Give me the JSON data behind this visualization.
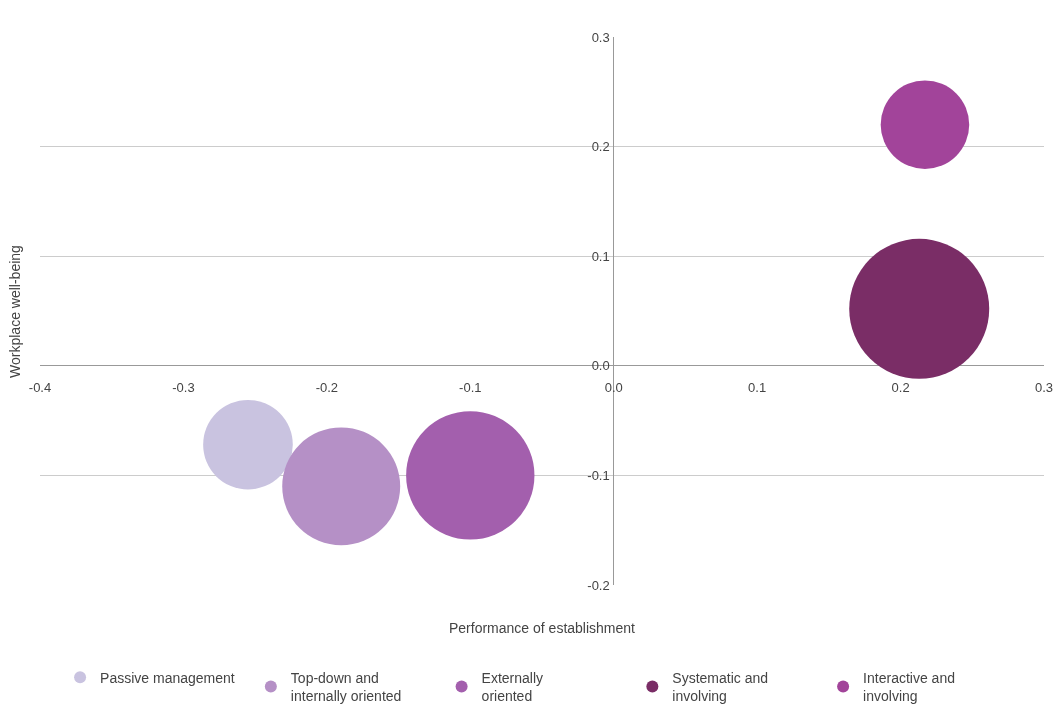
{
  "chart_data": {
    "type": "bubble",
    "xlabel": "Performance of establishment",
    "ylabel": "Workplace well-being",
    "xlim": [
      -0.4,
      0.3
    ],
    "ylim": [
      -0.2,
      0.3
    ],
    "xticks": [
      -0.4,
      -0.3,
      -0.2,
      -0.1,
      {
        "value": 0,
        "label": "0.0"
      },
      0.1,
      0.2,
      0.3
    ],
    "yticks": [
      -0.2,
      -0.1,
      {
        "value": 0,
        "label": "0.0"
      },
      0.1,
      0.2,
      0.3
    ],
    "grid": "y",
    "legend": "bottom",
    "series": [
      {
        "name": "Passive management",
        "color": "#c9c3e0",
        "x": [
          -0.255
        ],
        "values": [
          -0.072
        ],
        "sizes": [
          0.41
        ]
      },
      {
        "name": "Top-down and\ninternally oriented",
        "color": "#b590c6",
        "x": [
          -0.19
        ],
        "values": [
          -0.11
        ],
        "sizes": [
          0.71
        ]
      },
      {
        "name": "Externally\noriented",
        "color": "#a35fad",
        "x": [
          -0.1
        ],
        "values": [
          -0.1
        ],
        "sizes": [
          0.84
        ]
      },
      {
        "name": "Systematic and\ninvolving",
        "color": "#7a2d66",
        "x": [
          0.213
        ],
        "values": [
          0.052
        ],
        "sizes": [
          1
        ]
      },
      {
        "name": "Interactive and\ninvolving",
        "color": "#a2449a",
        "x": [
          0.217
        ],
        "values": [
          0.22
        ],
        "sizes": [
          0.4
        ]
      }
    ]
  }
}
